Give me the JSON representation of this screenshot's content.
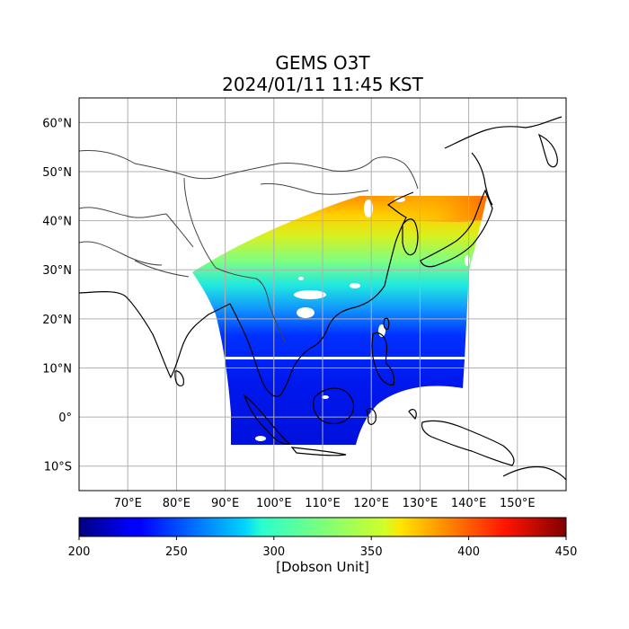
{
  "title": "GEMS O3T",
  "subtitle": "2024/01/11 11:45 KST",
  "map": {
    "lon_range": [
      60,
      160
    ],
    "lat_range": [
      -15,
      65
    ],
    "lon_ticks": [
      "70°E",
      "80°E",
      "90°E",
      "100°E",
      "110°E",
      "120°E",
      "130°E",
      "140°E",
      "150°E"
    ],
    "lat_ticks": [
      "60°N",
      "50°N",
      "40°N",
      "30°N",
      "20°N",
      "10°N",
      "0°",
      "10°S"
    ],
    "grid": true,
    "coastline_color": "#000000",
    "border_color": "#444444"
  },
  "colorbar": {
    "label": "[Dobson Unit]",
    "min": 200,
    "max": 450,
    "ticks": [
      "200",
      "250",
      "300",
      "350",
      "400",
      "450"
    ],
    "colormap": "jet"
  }
}
